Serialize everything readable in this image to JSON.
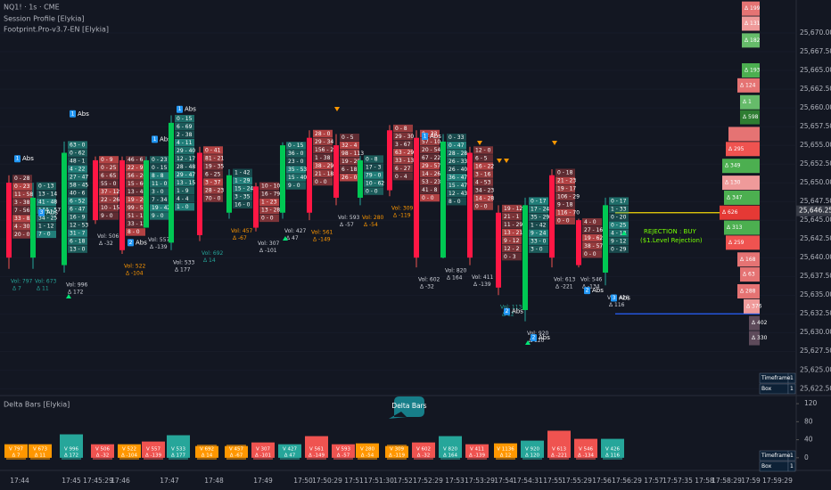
{
  "chart_data": {
    "type": "footprint",
    "header": [
      "NQ1! · 1s · CME",
      "Session Profile [Elykia]",
      "Footprint.Pro-v3.7-EN [Elykia]"
    ],
    "ylim": [
      25621.7,
      25674.4
    ],
    "yticks": [
      {
        "value": 25622.5,
        "label": "25,622.50"
      },
      {
        "value": 25625,
        "label": "25,625.00"
      },
      {
        "value": 25627.5,
        "label": "25,627.50"
      },
      {
        "value": 25630,
        "label": "25,630.00"
      },
      {
        "value": 25632.5,
        "label": "25,632.50"
      },
      {
        "value": 25635,
        "label": "25,635.00"
      },
      {
        "value": 25637.5,
        "label": "25,637.50"
      },
      {
        "value": 25640,
        "label": "25,640.00"
      },
      {
        "value": 25642.5,
        "label": "25,642.50"
      },
      {
        "value": 25645,
        "label": "25,645.00"
      },
      {
        "value": 25647.5,
        "label": "25,647.50"
      },
      {
        "value": 25650,
        "label": "25,650.00"
      },
      {
        "value": 25652.5,
        "label": "25,652.50"
      },
      {
        "value": 25655,
        "label": "25,655.00"
      },
      {
        "value": 25657.5,
        "label": "25,657.50"
      },
      {
        "value": 25660,
        "label": "25,660.00"
      },
      {
        "value": 25662.5,
        "label": "25,662.50"
      },
      {
        "value": 25665,
        "label": "25,665.00"
      },
      {
        "value": 25667.5,
        "label": "25,667.50"
      },
      {
        "value": 25670,
        "label": "25,670.00"
      }
    ],
    "last_price": {
      "value": 25646.25,
      "label": "25,646.25"
    },
    "levels": [
      {
        "price": 25646,
        "color": "#f5d90a"
      },
      {
        "price": 25632.5,
        "color": "#2962ff"
      }
    ],
    "annotation": [
      "REJECTION : BUY",
      "($1.Level Rejection)"
    ],
    "candles": [
      {
        "open": 25650,
        "high": 25651,
        "low": 25638.5,
        "close": 25640,
        "cells": [
          "0 - 28",
          "0 - 23",
          "11 - 58",
          "3 - 38",
          "7 - 56",
          "33 - 83",
          "4 - 30",
          "20 - 0"
        ],
        "vol": "Vol: 797",
        "delta": "Δ 7",
        "label_color": "#26a69a",
        "badge": {
          "number": "1",
          "text": "Abs",
          "price": 25653.2
        }
      },
      {
        "open": 25640,
        "high": 25650,
        "low": 25638.5,
        "close": 25648,
        "cells": [
          "0 - 13",
          "13 - 14",
          "41 - 48",
          "144 - 57",
          "34 - 25",
          "1 - 12",
          "7 - 0"
        ],
        "vol": "Vol: 673",
        "delta": "Δ 11",
        "label_color": "#26a69a",
        "badge": {
          "number": "3",
          "text": "Abs",
          "price": 25646
        }
      },
      {
        "open": 25639,
        "high": 25655.5,
        "low": 25638,
        "close": 25654,
        "cells": [
          "63 - 0",
          "0 - 62",
          "48 - 1",
          "4 - 22",
          "27 - 47",
          "58 - 45",
          "40 - 6",
          "6 - 52",
          "6 - 47",
          "16 - 9",
          "12 - 53",
          "31 - 7",
          "6 - 18",
          "13 - 0"
        ],
        "vol": "Vol: 996",
        "delta": "Δ 172",
        "label_color": "#d1d4dc",
        "badge": {
          "number": "1",
          "text": "Abs",
          "price": 25659.2
        }
      },
      {
        "open": 25653,
        "high": 25653.5,
        "low": 25644.5,
        "close": 25645,
        "cells": [
          "0 - 9",
          "0 - 25",
          "6 - 65",
          "55 - 0",
          "37 - 12",
          "22 - 26",
          "10 - 15",
          "9 - 0"
        ],
        "vol": "Vol: 506",
        "delta": "Δ -32",
        "label_color": "#d1d4dc"
      },
      {
        "open": 25653,
        "high": 25653.5,
        "low": 25640.5,
        "close": 25641,
        "cells": [
          "46 - 6",
          "22 - 9",
          "56 - 26",
          "15 - 60",
          "13 - 48",
          "19 - 26",
          "99 - 55",
          "51 - 1",
          "33 - 12",
          "8 - 0"
        ],
        "vol": "Vol: 522",
        "delta": "Δ -104",
        "label_color": "#ff9800",
        "badge": {
          "number": "2",
          "text": "Abs",
          "price": 25642
        }
      },
      {
        "open": 25644,
        "high": 25653.5,
        "low": 25644,
        "close": 25653,
        "cells": [
          "0 - 23",
          "0 - 15",
          "8 - 8",
          "11 - 0",
          "3 - 0",
          "7 - 34",
          "19 - 42",
          "9 - 0"
        ],
        "vol": "Vol: 557",
        "delta": "Δ -139",
        "label_color": "#d1d4dc",
        "badge": {
          "number": "1",
          "text": "Abs",
          "price": 25655.8
        }
      },
      {
        "open": 25642,
        "high": 25659,
        "low": 25641,
        "close": 25658,
        "cells": [
          "0 - 15",
          "6 - 69",
          "2 - 38",
          "4 - 11",
          "29 - 40",
          "12 - 17",
          "28 - 48",
          "29 - 47",
          "13 - 15",
          "1 - 9",
          "4 - 4",
          "1 - 0"
        ],
        "vol": "Vol: 533",
        "delta": "Δ 177",
        "label_color": "#d1d4dc",
        "badge": {
          "number": "1",
          "text": "Abs",
          "price": 25659.8
        }
      },
      {
        "open": 25654,
        "high": 25654.8,
        "low": 25642.2,
        "close": 25643,
        "cells": [
          "0 - 41",
          "81 - 21",
          "19 - 35",
          "6 - 25",
          "3 - 37",
          "28 - 23",
          "70 - 0"
        ],
        "vol": "Vol: 692",
        "delta": "Δ 14",
        "label_color": "#26a69a"
      },
      {
        "open": 25646,
        "high": 25651.8,
        "low": 25645.2,
        "close": 25651,
        "cells": [
          "1 - 42",
          "1 - 29",
          "15 - 24",
          "3 - 35",
          "16 - 0"
        ],
        "vol": "Vol: 457",
        "delta": "Δ -67",
        "label_color": "#ff9800"
      },
      {
        "open": 25649.5,
        "high": 25650,
        "low": 25643.5,
        "close": 25644,
        "cells": [
          "10 - 10",
          "16 - 79",
          "1 - 23",
          "13 - 28",
          "0 - 0"
        ],
        "vol": "Vol: 307",
        "delta": "Δ -101",
        "label_color": "#d1d4dc"
      },
      {
        "open": 25646,
        "high": 25655.4,
        "low": 25645.2,
        "close": 25655,
        "cells": [
          "0 - 15",
          "36 - 0",
          "23 - 0",
          "35 - 53",
          "15 - 40",
          "9 - 0"
        ],
        "vol": "Vol: 427",
        "delta": "Δ 47",
        "label_color": "#d1d4dc"
      },
      {
        "open": 25656,
        "high": 25657,
        "low": 25645,
        "close": 25646,
        "cells": [
          "28 - 0",
          "29 - 34",
          "156 - 25",
          "1 - 38",
          "38 - 29",
          "21 - 18",
          "0 - 0"
        ],
        "vol": "Vol: 561",
        "delta": "Δ -149",
        "label_color": "#ff9800"
      },
      {
        "open": 25655,
        "high": 25656.5,
        "low": 25647,
        "close": 25648,
        "cells": [
          "0 - 5",
          "32 - 4",
          "98 - 113",
          "19 - 26",
          "6 - 18",
          "26 - 0"
        ],
        "vol": "Vol: 593",
        "delta": "Δ -57",
        "label_color": "#d1d4dc"
      },
      {
        "open": 25648,
        "high": 25653.6,
        "low": 25647,
        "close": 25653,
        "cells": [
          "0 - 8",
          "17 - 3",
          "79 - 0",
          "10 - 62",
          "0 - 0"
        ],
        "vol": "Vol: 280",
        "delta": "Δ -54",
        "label_color": "#ff9800"
      },
      {
        "open": 25657,
        "high": 25657.7,
        "low": 25648.2,
        "close": 25649,
        "cells": [
          "0 - 8",
          "29 - 30",
          "3 - 67",
          "63 - 29",
          "33 - 13",
          "6 - 27",
          "0 - 4"
        ],
        "vol": "Vol: 309",
        "delta": "Δ -119",
        "label_color": "#ff9800"
      },
      {
        "open": 25656,
        "high": 25657,
        "low": 25638.7,
        "close": 25640,
        "cells": [
          "0 - 33",
          "57 - 10",
          "20 - 54",
          "67 - 22",
          "29 - 57",
          "14 - 26",
          "53 - 23",
          "41 - 8",
          "0 - 0"
        ],
        "vol": "Vol: 602",
        "delta": "Δ -32",
        "label_color": "#d1d4dc",
        "badge": {
          "number": "1",
          "text": "Abs",
          "price": 25656.2
        }
      },
      {
        "open": 25640,
        "high": 25656.5,
        "low": 25639.9,
        "close": 25655.5,
        "cells": [
          "0 - 33",
          "0 - 47",
          "28 - 28",
          "26 - 33",
          "26 - 40",
          "36 - 47",
          "15 - 47",
          "12 - 43",
          "8 - 0"
        ],
        "vol": "Vol: 820",
        "delta": "Δ 164",
        "label_color": "#d1d4dc"
      },
      {
        "open": 25654,
        "high": 25654.8,
        "low": 25639,
        "close": 25640,
        "cells": [
          "12 - 0",
          "6 - 5",
          "16 - 22",
          "3 - 16",
          "4 - 53",
          "34 - 23",
          "14 - 28",
          "0 - 0"
        ],
        "vol": "Vol: 411",
        "delta": "Δ -139",
        "label_color": "#d1d4dc"
      },
      {
        "open": 25646,
        "high": 25647,
        "low": 25635,
        "close": 25636,
        "cells": [
          "19 - 12",
          "21 - 1",
          "11 - 29",
          "13 - 21",
          "9 - 12",
          "12 - 2",
          "0 - 3"
        ],
        "vol": "Vol: 1136",
        "delta": "Δ 12",
        "label_color": "#26a69a",
        "badge": {
          "number": "2",
          "text": "Abs",
          "price": 25632.8
        }
      },
      {
        "open": 25633,
        "high": 25648,
        "low": 25631.5,
        "close": 25647,
        "cells": [
          "0 - 17",
          "17 - 24",
          "35 - 29",
          "1 - 42",
          "9 - 24",
          "33 - 0",
          "3 - 0"
        ],
        "vol": "Vol: 920",
        "delta": "Δ 120",
        "label_color": "#d1d4dc",
        "badge": {
          "number": "2",
          "text": "Abs",
          "price": 25629.3
        }
      },
      {
        "open": 25651,
        "high": 25651.8,
        "low": 25638.7,
        "close": 25640,
        "cells": [
          "0 - 18",
          "21 - 23",
          "19 - 17",
          "106 - 29",
          "9 - 18",
          "116 - 70",
          "0 - 0"
        ],
        "vol": "Vol: 613",
        "delta": "Δ -221",
        "label_color": "#d1d4dc"
      },
      {
        "open": 25645,
        "high": 25645.2,
        "low": 25638.7,
        "close": 25639,
        "cells": [
          "4 - 0",
          "27 - 16",
          "19 - 62",
          "38 - 57",
          "0 - 0"
        ],
        "vol": "Vol: 546",
        "delta": "Δ -134",
        "label_color": "#d1d4dc",
        "badge": {
          "number": "2",
          "text": "Abs",
          "price": 25635.6
        }
      },
      {
        "open": 25638,
        "high": 25648,
        "low": 25636.3,
        "close": 25647,
        "cells": [
          "0 - 17",
          "1 - 33",
          "0 - 20",
          "0 - 25",
          "4 - 18",
          "9 - 12",
          "0 - 29"
        ],
        "vol": "Vol: 426",
        "delta": "Δ 116",
        "label_color": "#d1d4dc",
        "badge": {
          "number": "3",
          "text": "Abs",
          "price": 25634.6
        }
      }
    ],
    "profile": [
      {
        "price": 25673.25,
        "volume": 20,
        "color": "#e57373",
        "label": "Δ 199"
      },
      {
        "price": 25671.25,
        "volume": 20,
        "color": "#ef9a9a",
        "label": "Δ 131"
      },
      {
        "price": 25669,
        "volume": 20,
        "color": "#66bb6a",
        "label": "Δ 182"
      },
      {
        "price": 25665,
        "volume": 20,
        "color": "#4caf50",
        "label": "Δ 193"
      },
      {
        "price": 25663,
        "volume": 25,
        "color": "#e57373",
        "label": "Δ 124"
      },
      {
        "price": 25660.75,
        "volume": 22,
        "color": "#66bb6a",
        "label": "Δ 1"
      },
      {
        "price": 25658.75,
        "volume": 22,
        "color": "#2e7d32",
        "label": "Δ 598"
      },
      {
        "price": 25656.5,
        "volume": 35,
        "color": "#e57373",
        "label": null
      },
      {
        "price": 25654.5,
        "volume": 38,
        "color": "#ef5350",
        "label": "Δ 295"
      },
      {
        "price": 25652.25,
        "volume": 42,
        "color": "#4caf50",
        "label": "Δ 349"
      },
      {
        "price": 25650,
        "volume": 42,
        "color": "#ef9a9a",
        "label": "Δ 130"
      },
      {
        "price": 25648,
        "volume": 40,
        "color": "#4caf50",
        "label": "Δ 347"
      },
      {
        "price": 25646,
        "volume": 45,
        "color": "#e53935",
        "label": "Δ 626"
      },
      {
        "price": 25644,
        "volume": 40,
        "color": "#4caf50",
        "label": "Δ 313"
      },
      {
        "price": 25642,
        "volume": 38,
        "color": "#ef5350",
        "label": "Δ 259"
      },
      {
        "price": 25639.75,
        "volume": 25,
        "color": "#e57373",
        "label": "Δ 168"
      },
      {
        "price": 25637.75,
        "volume": 22,
        "color": "#e57373",
        "label": "Δ 63"
      },
      {
        "price": 25635.5,
        "volume": 25,
        "color": "#e57373",
        "label": "Δ 288"
      },
      {
        "price": 25633.5,
        "volume": 18,
        "color": "#ef9a9a",
        "label": "Δ 376"
      },
      {
        "price": 25631.25,
        "volume": 12,
        "color": "#5d4a5a",
        "label": "Δ 402"
      },
      {
        "price": 25629.25,
        "volume": 12,
        "color": "#5d4a5a",
        "label": "Δ 330"
      }
    ],
    "settings_table": [
      [
        "Timeframe",
        "1"
      ],
      [
        "Box",
        "1"
      ]
    ],
    "delta_pane": {
      "type": "bar",
      "title": "Delta Bars [Elykia]",
      "callout": "Delta Bars",
      "ylim": [
        -28,
        136
      ],
      "yticks": [
        0,
        40,
        80,
        120
      ],
      "labels": [
        [
          "V 797",
          "Δ 7"
        ],
        [
          "V 673",
          "Δ 11"
        ],
        [
          "V 996",
          "Δ 172"
        ],
        [
          "V 506",
          "Δ -32"
        ],
        [
          "V 522",
          "Δ -104"
        ],
        [
          "V 557",
          "Δ -139"
        ],
        [
          "V 533",
          "Δ 177"
        ],
        [
          "V 692",
          "Δ 14"
        ],
        [
          "V 457",
          "Δ -67"
        ],
        [
          "V 307",
          "Δ -101"
        ],
        [
          "V 427",
          "Δ 47"
        ],
        [
          "V 561",
          "Δ -149"
        ],
        [
          "V 593",
          "Δ -57"
        ],
        [
          "V 280",
          "Δ -54"
        ],
        [
          "V 309",
          "Δ -119"
        ],
        [
          "V 602",
          "Δ -32"
        ],
        [
          "V 820",
          "Δ 164"
        ],
        [
          "V 411",
          "Δ -139"
        ],
        [
          "V 1136",
          "Δ 12"
        ],
        [
          "V 920",
          "Δ 120"
        ],
        [
          "V 613",
          "Δ -221"
        ],
        [
          "V 546",
          "Δ -134"
        ],
        [
          "V 426",
          "Δ 116"
        ]
      ],
      "values": [
        30,
        30,
        52,
        30,
        30,
        36,
        50,
        26,
        26,
        34,
        30,
        48,
        30,
        32,
        26,
        34,
        48,
        30,
        32,
        38,
        60,
        42,
        42
      ],
      "colors": [
        "#ff9800",
        "#ff9800",
        "#26a69a",
        "#ef5350",
        "#ff9800",
        "#ef5350",
        "#26a69a",
        "#ff9800",
        "#ff9800",
        "#ef5350",
        "#26a69a",
        "#ef5350",
        "#ef5350",
        "#ff9800",
        "#ff9800",
        "#ef5350",
        "#26a69a",
        "#ef5350",
        "#ff9800",
        "#26a69a",
        "#ef5350",
        "#ef5350",
        "#26a69a"
      ]
    },
    "x_axis": [
      "17:44",
      "17:45",
      "17:45:29",
      "17:46",
      "17:47",
      "17:48",
      "17:49",
      "17:50",
      "17:50:29",
      "17:51",
      "17:51:30",
      "17:52",
      "17:52:29",
      "17:53",
      "17:53:29",
      "17:54",
      "17:54:31",
      "17:55",
      "17:55:29",
      "17:56",
      "17:56:29",
      "17:57",
      "17:57:35",
      "17:58",
      "17:58:29",
      "17:59",
      "17:59:29"
    ]
  }
}
